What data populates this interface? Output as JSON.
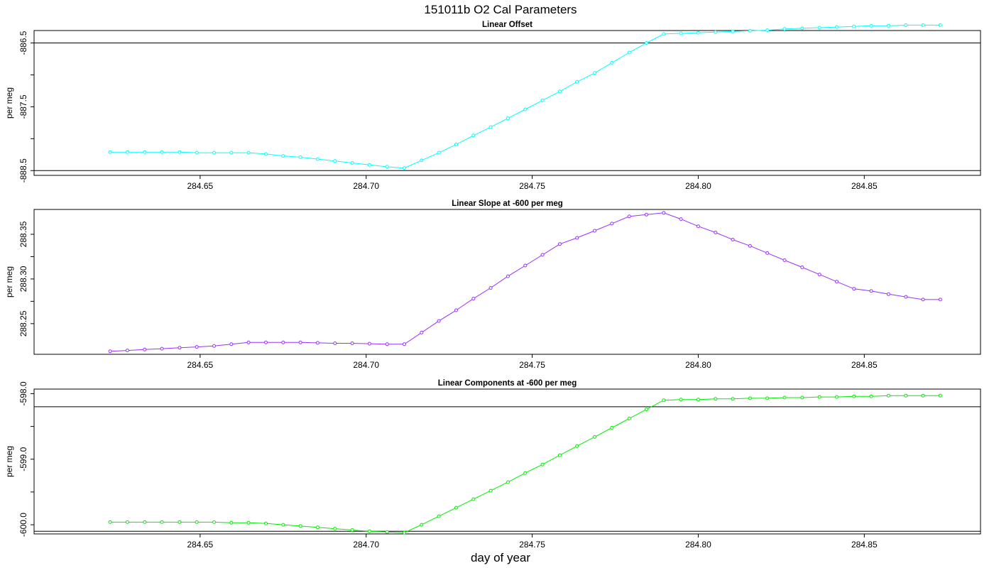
{
  "figure": {
    "title": "151011b   O2 Cal Parameters",
    "xlabel": "day of year"
  },
  "chart_data": [
    {
      "type": "line",
      "title": "Linear Offset",
      "ylabel": "per meg",
      "color": "#00ffff",
      "xlim": [
        284.6,
        284.885
      ],
      "ylim": [
        -888.575,
        -886.305
      ],
      "x_ticks": [
        "284.65",
        "284.70",
        "284.75",
        "284.80",
        "284.85"
      ],
      "x_tick_values": [
        284.65,
        284.7,
        284.75,
        284.8,
        284.85
      ],
      "y_ticks": [
        "-886.5",
        "-887.5",
        "-888.5"
      ],
      "y_tick_values": [
        -886.5,
        -887.5,
        -888.5
      ],
      "hlines": [
        -886.5,
        -888.5
      ],
      "x": [
        284.6229,
        284.6281,
        284.6333,
        284.6385,
        284.6438,
        284.649,
        284.6542,
        284.6594,
        284.6646,
        284.6698,
        284.675,
        284.6802,
        284.6854,
        284.6906,
        284.6958,
        284.701,
        284.7063,
        284.7115,
        284.7167,
        284.7219,
        284.7271,
        284.7323,
        284.7375,
        284.7427,
        284.7479,
        284.7531,
        284.7583,
        284.7635,
        284.7688,
        284.774,
        284.7792,
        284.7844,
        284.7896,
        284.7948,
        284.8,
        284.8052,
        284.8104,
        284.8156,
        284.8208,
        284.826,
        284.8313,
        284.8365,
        284.8417,
        284.8469,
        284.8521,
        284.8573,
        284.8625,
        284.8677,
        284.8729
      ],
      "y": [
        -888.21,
        -888.21,
        -888.21,
        -888.21,
        -888.21,
        -888.22,
        -888.22,
        -888.22,
        -888.22,
        -888.24,
        -888.27,
        -888.29,
        -888.32,
        -888.35,
        -888.38,
        -888.41,
        -888.44,
        -888.46,
        -888.34,
        -888.22,
        -888.09,
        -887.95,
        -887.82,
        -887.68,
        -887.54,
        -887.4,
        -887.26,
        -887.11,
        -886.97,
        -886.81,
        -886.65,
        -886.5,
        -886.36,
        -886.35,
        -886.34,
        -886.33,
        -886.32,
        -886.31,
        -886.3,
        -886.28,
        -886.27,
        -886.26,
        -886.25,
        -886.24,
        -886.23,
        -886.23,
        -886.22,
        -886.22,
        -886.22
      ]
    },
    {
      "type": "line",
      "title": "Linear Slope at -600 per meg",
      "ylabel": "per meg",
      "color": "#9b30ff",
      "xlim": [
        284.6,
        284.885
      ],
      "ylim": [
        284.5,
        288.5
      ],
      "x_ticks": [
        "284.65",
        "284.70",
        "284.75",
        "284.80",
        "284.85"
      ],
      "x_tick_values": [
        284.65,
        284.7,
        284.75,
        284.8,
        284.85
      ],
      "y_ticks": [
        "288.25",
        "288.30",
        "288.35"
      ],
      "y_tick_values": [
        288.25,
        288.3,
        288.35
      ],
      "ylim_actual": [
        288.2157,
        288.3778
      ],
      "hlines": [],
      "x": [
        284.6229,
        284.6281,
        284.6333,
        284.6385,
        284.6438,
        284.649,
        284.6542,
        284.6594,
        284.6646,
        284.6698,
        284.675,
        284.6802,
        284.6854,
        284.6906,
        284.6958,
        284.701,
        284.7063,
        284.7115,
        284.7167,
        284.7219,
        284.7271,
        284.7323,
        284.7375,
        284.7427,
        284.7479,
        284.7531,
        284.7583,
        284.7635,
        284.7688,
        284.774,
        284.7792,
        284.7844,
        284.7896,
        284.7948,
        284.8,
        284.8052,
        284.8104,
        284.8156,
        284.8208,
        284.826,
        284.8313,
        284.8365,
        284.8417,
        284.8469,
        284.8521,
        284.8573,
        284.8625,
        284.8677,
        284.8729
      ],
      "y": [
        288.219,
        288.22,
        288.221,
        288.222,
        288.223,
        288.224,
        288.225,
        288.227,
        288.229,
        288.229,
        288.229,
        288.229,
        288.2285,
        288.228,
        288.228,
        288.2275,
        288.227,
        288.227,
        288.24,
        288.253,
        288.265,
        288.278,
        288.29,
        288.303,
        288.315,
        288.327,
        288.339,
        288.346,
        288.354,
        288.362,
        288.37,
        288.372,
        288.374,
        288.367,
        288.359,
        288.352,
        288.344,
        288.337,
        288.329,
        288.321,
        288.313,
        288.305,
        288.297,
        288.289,
        288.2865,
        288.283,
        288.28,
        288.277,
        288.277
      ]
    },
    {
      "type": "line",
      "title": "Linear Components at -600 per meg",
      "ylabel": "per meg",
      "color": "#00ee00",
      "xlim": [
        284.6,
        284.885
      ],
      "ylim": [
        -600.14,
        -597.93
      ],
      "x_ticks": [
        "284.65",
        "284.70",
        "284.75",
        "284.80",
        "284.85"
      ],
      "x_tick_values": [
        284.65,
        284.7,
        284.75,
        284.8,
        284.85
      ],
      "y_ticks": [
        "-598.0",
        "-599.0",
        "-600.0"
      ],
      "y_tick_values": [
        -598.0,
        -599.0,
        -600.0
      ],
      "hlines": [
        -598.2,
        -600.1
      ],
      "x": [
        284.6229,
        284.6281,
        284.6333,
        284.6385,
        284.6438,
        284.649,
        284.6542,
        284.6594,
        284.6646,
        284.6698,
        284.675,
        284.6802,
        284.6854,
        284.6906,
        284.6958,
        284.701,
        284.7063,
        284.7115,
        284.7167,
        284.7219,
        284.7271,
        284.7323,
        284.7375,
        284.7427,
        284.7479,
        284.7531,
        284.7583,
        284.7635,
        284.7688,
        284.774,
        284.7792,
        284.7844,
        284.7896,
        284.7948,
        284.8,
        284.8052,
        284.8104,
        284.8156,
        284.8208,
        284.826,
        284.8313,
        284.8365,
        284.8417,
        284.8469,
        284.8521,
        284.8573,
        284.8625,
        284.8677,
        284.8729
      ],
      "y": [
        -599.96,
        -599.96,
        -599.96,
        -599.96,
        -599.96,
        -599.96,
        -599.96,
        -599.97,
        -599.97,
        -599.98,
        -600.0,
        -600.02,
        -600.04,
        -600.06,
        -600.08,
        -600.1,
        -600.11,
        -600.12,
        -600.0,
        -599.87,
        -599.74,
        -599.61,
        -599.48,
        -599.35,
        -599.21,
        -599.08,
        -598.94,
        -598.8,
        -598.66,
        -598.52,
        -598.38,
        -598.24,
        -598.1,
        -598.09,
        -598.09,
        -598.08,
        -598.08,
        -598.07,
        -598.07,
        -598.06,
        -598.06,
        -598.05,
        -598.05,
        -598.04,
        -598.04,
        -598.03,
        -598.03,
        -598.03,
        -598.03
      ]
    }
  ]
}
